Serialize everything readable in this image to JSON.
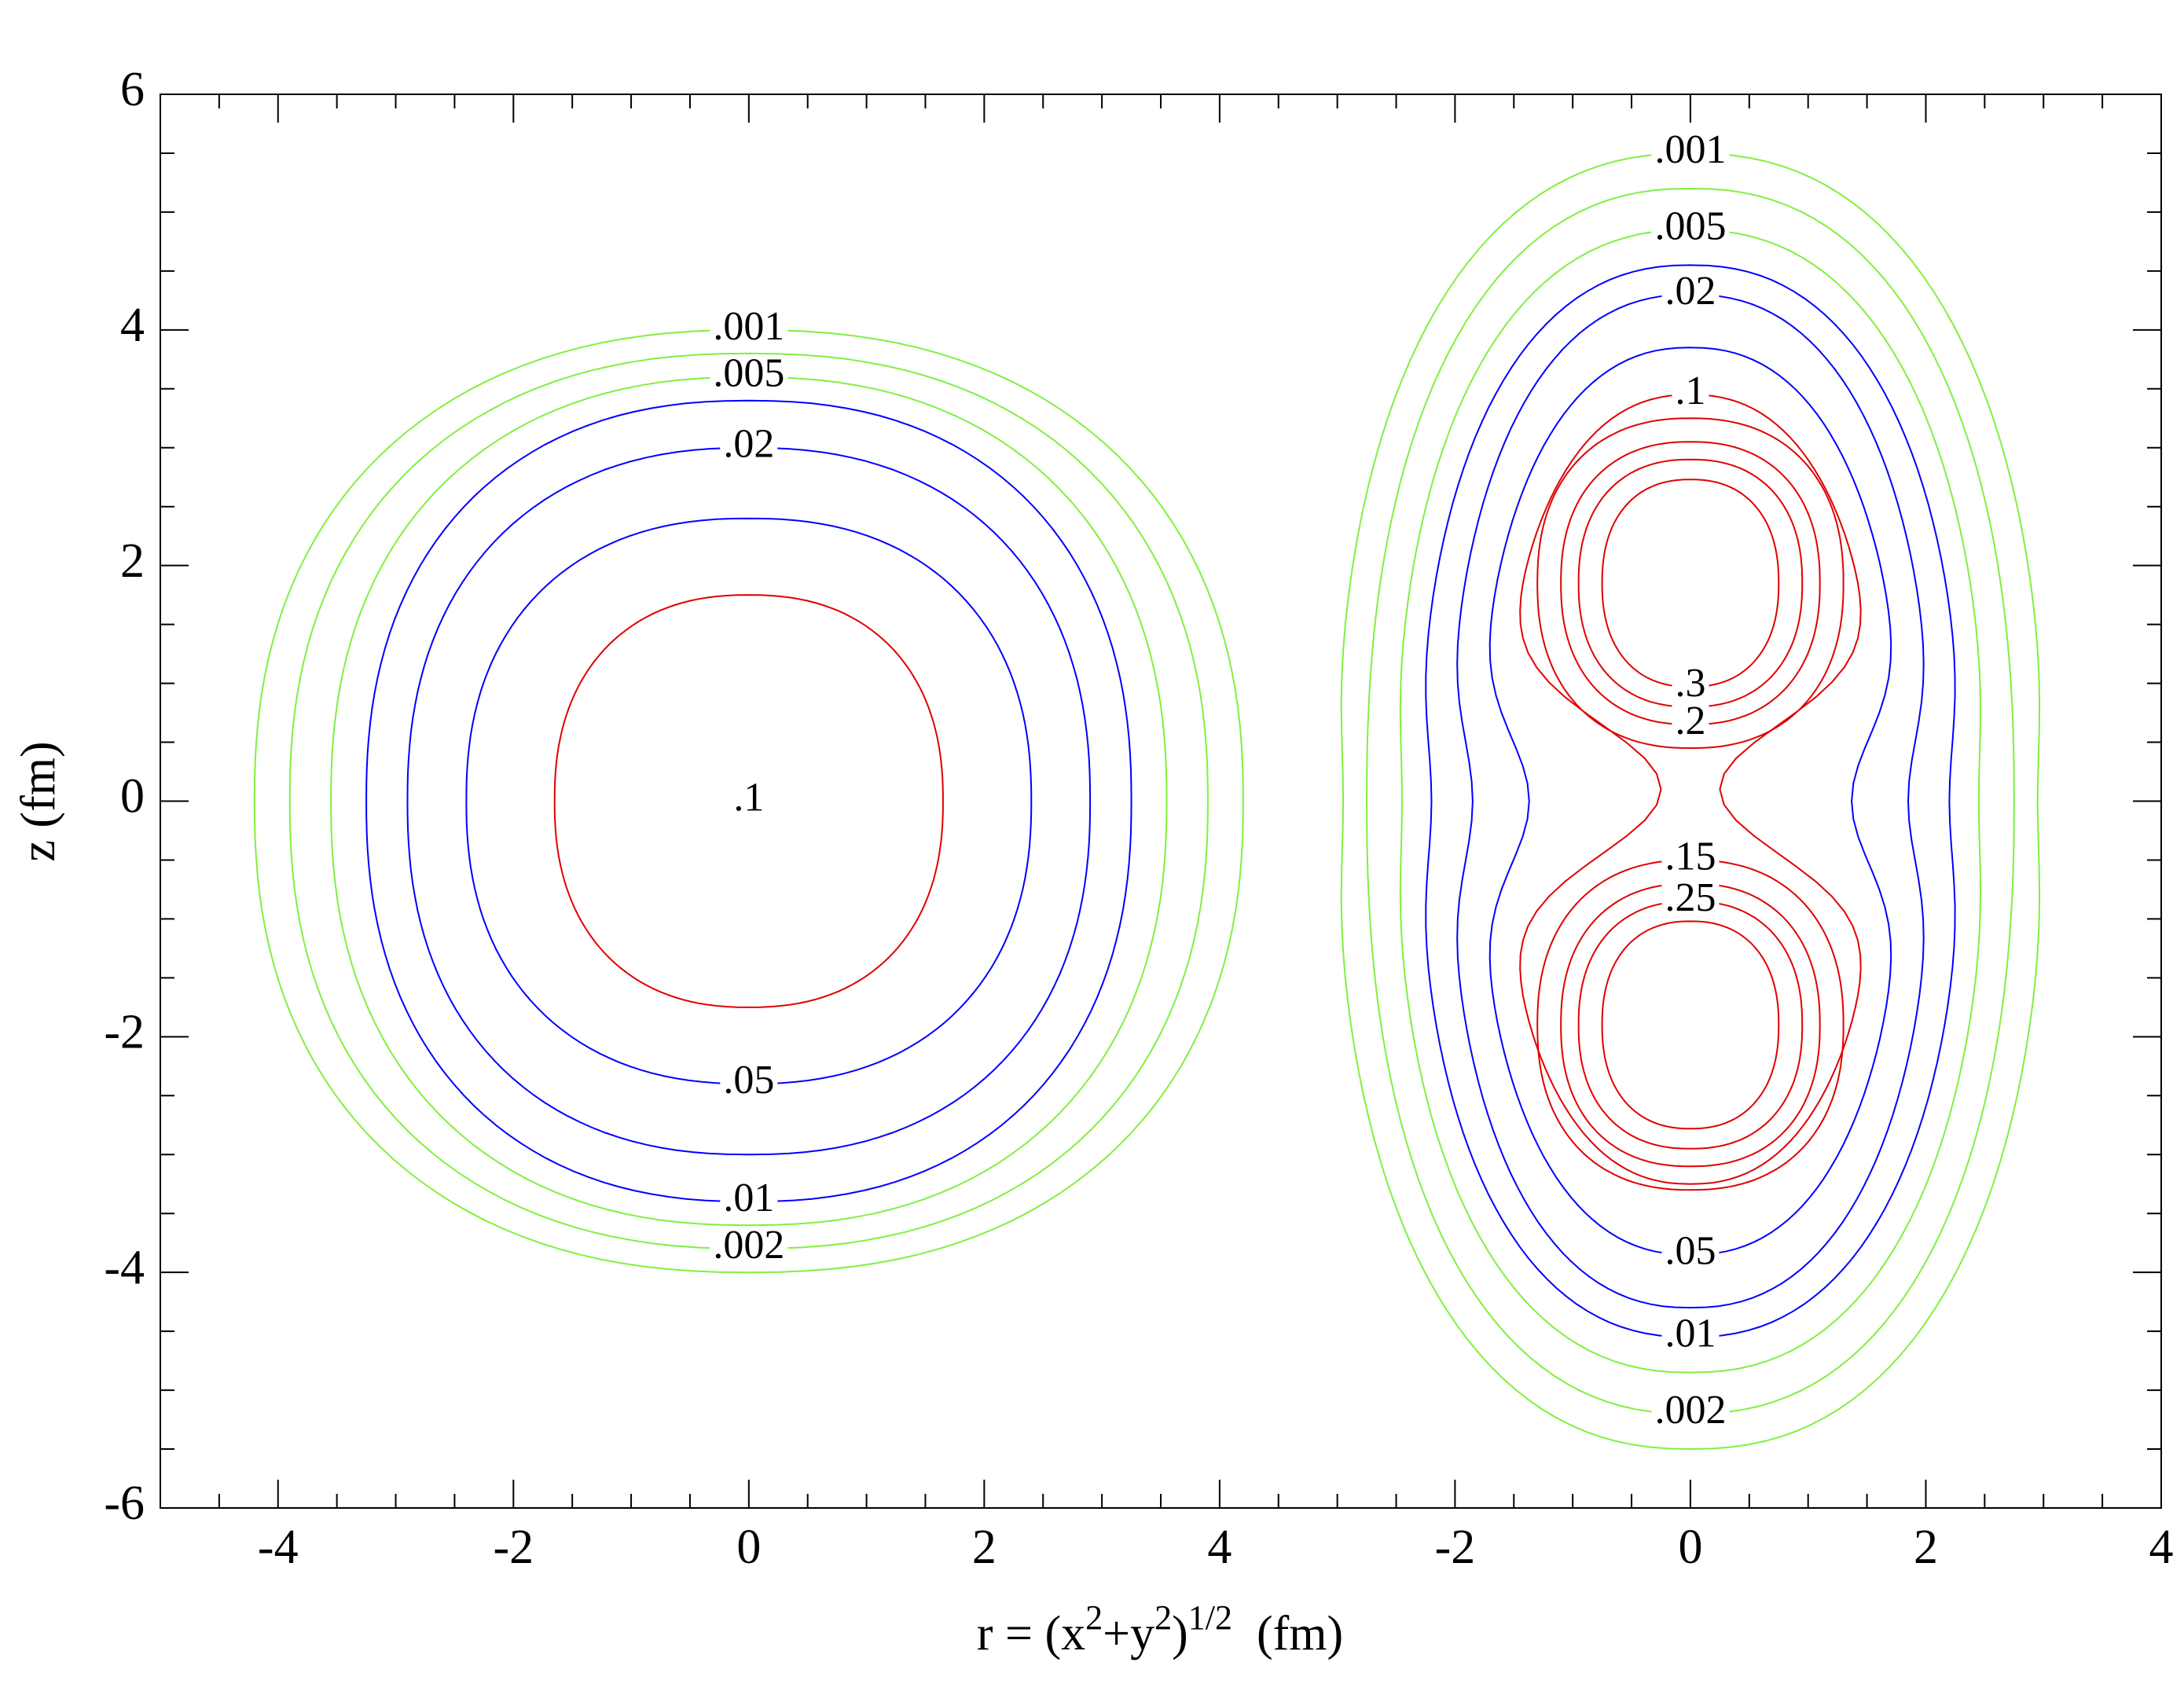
{
  "chart_data": {
    "type": "contour",
    "xlabel": [
      "r = (x",
      "2",
      "+y",
      "2",
      ")",
      "1/2",
      "  (fm)"
    ],
    "ylabel": "z  (fm)",
    "xlim": [
      -5,
      12
    ],
    "xticks": [
      -4,
      -2,
      0,
      2,
      4,
      {
        "value": 6,
        "label": "-2"
      },
      {
        "value": 8,
        "label": "0"
      },
      {
        "value": 10,
        "label": "2"
      },
      {
        "value": 12,
        "label": "4"
      }
    ],
    "ylim": [
      -6,
      6
    ],
    "yticks": [
      -6,
      -4,
      -2,
      0,
      2,
      4,
      6
    ],
    "contours": [
      {
        "level": 0.001,
        "label": ".001",
        "color": "#80f040",
        "center": [
          0,
          0
        ],
        "r": 4.2,
        "z": 4.0,
        "label_pos": "top"
      },
      {
        "level": 0.002,
        "label": ".002",
        "color": "#80f040",
        "center": [
          0,
          0
        ],
        "r": 3.9,
        "z": 3.8,
        "label_pos": "bottom"
      },
      {
        "level": 0.005,
        "label": ".005",
        "color": "#80f040",
        "center": [
          0,
          0
        ],
        "r": 3.55,
        "z": 3.6,
        "label_pos": "top"
      },
      {
        "level": 0.01,
        "label": ".01",
        "color": "#0000ff",
        "center": [
          0,
          0
        ],
        "r": 3.25,
        "z": 3.4,
        "label_pos": "bottom"
      },
      {
        "level": 0.02,
        "label": ".02",
        "color": "#0000ff",
        "center": [
          0,
          0
        ],
        "r": 2.9,
        "z": 3.0,
        "label_pos": "top"
      },
      {
        "level": 0.05,
        "label": ".05",
        "color": "#0000ff",
        "center": [
          0,
          0
        ],
        "r": 2.4,
        "z": 2.4,
        "label_pos": "bottom"
      },
      {
        "level": 0.1,
        "label": ".1",
        "color": "#e00000",
        "center": [
          0,
          0
        ],
        "r": 1.65,
        "z": 1.75,
        "label_pos": "center"
      },
      {
        "level": 0.001,
        "label": ".001",
        "color": "#80f040",
        "center": [
          8,
          0
        ],
        "r": 3.0,
        "z": 5.5,
        "waist": 2.95,
        "label_pos": "top"
      },
      {
        "level": 0.002,
        "label": ".002",
        "color": "#80f040",
        "center": [
          8,
          0
        ],
        "r": 2.75,
        "z": 5.2,
        "waist": 2.75,
        "label_pos": "bottom"
      },
      {
        "level": 0.005,
        "label": ".005",
        "color": "#80f040",
        "center": [
          8,
          0
        ],
        "r": 2.5,
        "z": 4.85,
        "waist": 2.45,
        "label_pos": "top"
      },
      {
        "level": 0.01,
        "label": ".01",
        "color": "#0000ff",
        "center": [
          8,
          0
        ],
        "r": 2.3,
        "z": 4.55,
        "waist": 2.2,
        "label_pos": "bottom"
      },
      {
        "level": 0.02,
        "label": ".02",
        "color": "#0000ff",
        "center": [
          8,
          0
        ],
        "r": 2.05,
        "z": 4.3,
        "waist": 1.85,
        "label_pos": "top"
      },
      {
        "level": 0.05,
        "label": ".05",
        "color": "#0000ff",
        "center": [
          8,
          0
        ],
        "r": 1.8,
        "z": 3.85,
        "waist": 1.37,
        "label_pos": "bottom"
      },
      {
        "level": 0.1,
        "label": ".1",
        "color": "#e00000",
        "center": [
          8,
          0.1
        ],
        "r": 1.6,
        "z": 3.35,
        "waist": 0.25,
        "label_pos": "top"
      },
      {
        "level": 0.15,
        "color": "#e00000",
        "center": [
          8,
          1.85
        ],
        "r": 1.3,
        "z": 1.4
      },
      {
        "level": 0.2,
        "label": ".2",
        "color": "#e00000",
        "center": [
          8,
          1.85
        ],
        "r": 1.1,
        "z": 1.2,
        "label_pos": "bottom"
      },
      {
        "level": 0.25,
        "color": "#e00000",
        "center": [
          8,
          1.85
        ],
        "r": 0.95,
        "z": 1.05
      },
      {
        "level": 0.3,
        "label": ".3",
        "color": "#e00000",
        "center": [
          8,
          1.85
        ],
        "r": 0.75,
        "z": 0.88,
        "label_pos": "bottom"
      },
      {
        "level": 0.15,
        "label": ".15",
        "color": "#e00000",
        "center": [
          8,
          -1.9
        ],
        "r": 1.3,
        "z": 1.4,
        "label_pos": "top"
      },
      {
        "level": 0.2,
        "color": "#e00000",
        "center": [
          8,
          -1.9
        ],
        "r": 1.1,
        "z": 1.2
      },
      {
        "level": 0.25,
        "label": ".25",
        "color": "#e00000",
        "center": [
          8,
          -1.9
        ],
        "r": 0.95,
        "z": 1.05,
        "label_pos": "top"
      },
      {
        "level": 0.3,
        "color": "#e00000",
        "center": [
          8,
          -1.9
        ],
        "r": 0.75,
        "z": 0.88
      }
    ]
  }
}
